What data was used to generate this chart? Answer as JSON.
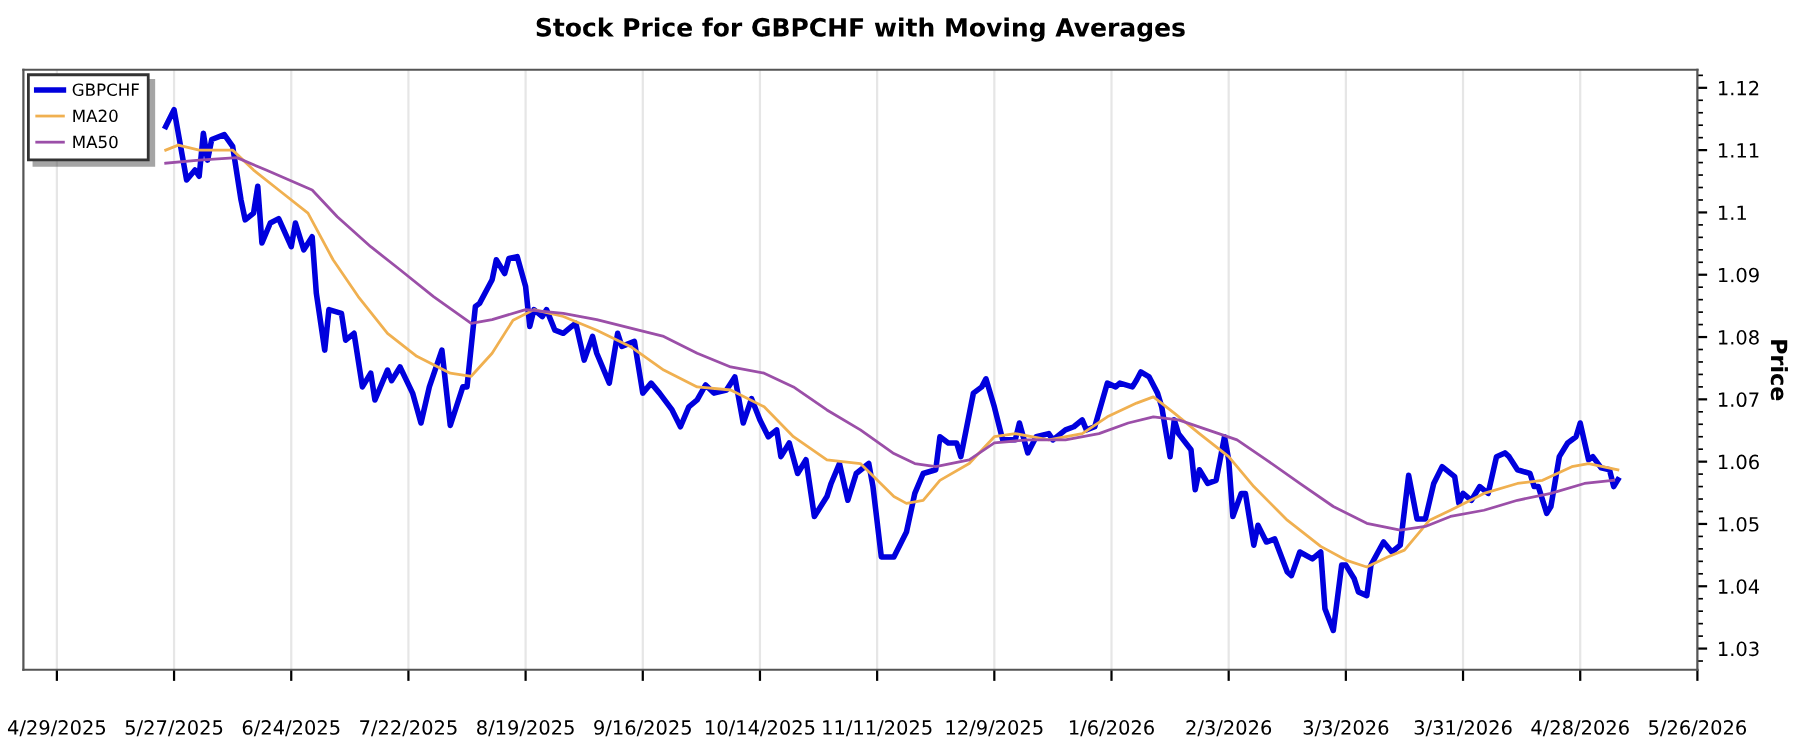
{
  "chart_data": {
    "type": "line",
    "title": "Stock Price for GBPCHF with Moving Averages",
    "ylabel": "Price",
    "xlim": [
      "2025-04-21",
      "2026-05-26"
    ],
    "ylim": [
      1.0266,
      1.1229
    ],
    "xticks": [
      {
        "value": "2025-04-29",
        "label": "4/29/2025"
      },
      {
        "value": "2025-05-27",
        "label": "5/27/2025"
      },
      {
        "value": "2025-06-24",
        "label": "6/24/2025"
      },
      {
        "value": "2025-07-22",
        "label": "7/22/2025"
      },
      {
        "value": "2025-08-19",
        "label": "8/19/2025"
      },
      {
        "value": "2025-09-16",
        "label": "9/16/2025"
      },
      {
        "value": "2025-10-14",
        "label": "10/14/2025"
      },
      {
        "value": "2025-11-11",
        "label": "11/11/2025"
      },
      {
        "value": "2025-12-09",
        "label": "12/9/2025"
      },
      {
        "value": "2026-01-06",
        "label": "1/6/2026"
      },
      {
        "value": "2026-02-03",
        "label": "2/3/2026"
      },
      {
        "value": "2026-03-03",
        "label": "3/3/2026"
      },
      {
        "value": "2026-03-31",
        "label": "3/31/2026"
      },
      {
        "value": "2026-04-28",
        "label": "4/28/2026"
      },
      {
        "value": "2026-05-26",
        "label": "5/26/2026"
      }
    ],
    "yticks": [
      1.03,
      1.04,
      1.05,
      1.06,
      1.07,
      1.08,
      1.09,
      1.1,
      1.11,
      1.12
    ],
    "grid": "x",
    "legend": "top left",
    "marker": "none",
    "line_style": "solid",
    "series": [
      {
        "name": "GBPCHF",
        "color": "#0000dd",
        "x": [
          "2025-05-25",
          "2025-05-27",
          "2025-05-30",
          "2025-06-01",
          "2025-06-02",
          "2025-06-03",
          "2025-06-04",
          "2025-06-05",
          "2025-06-08",
          "2025-06-10",
          "2025-06-12",
          "2025-06-13",
          "2025-06-15",
          "2025-06-16",
          "2025-06-17",
          "2025-06-19",
          "2025-06-21",
          "2025-06-24",
          "2025-06-25",
          "2025-06-27",
          "2025-06-29",
          "2025-06-30",
          "2025-07-02",
          "2025-07-03",
          "2025-07-06",
          "2025-07-07",
          "2025-07-09",
          "2025-07-11",
          "2025-07-13",
          "2025-07-14",
          "2025-07-17",
          "2025-07-18",
          "2025-07-20",
          "2025-07-23",
          "2025-07-25",
          "2025-07-27",
          "2025-07-30",
          "2025-08-01",
          "2025-08-04",
          "2025-08-05",
          "2025-08-07",
          "2025-08-08",
          "2025-08-11",
          "2025-08-12",
          "2025-08-14",
          "2025-08-15",
          "2025-08-17",
          "2025-08-19",
          "2025-08-20",
          "2025-08-21",
          "2025-08-23",
          "2025-08-24",
          "2025-08-26",
          "2025-08-28",
          "2025-08-30",
          "2025-08-31",
          "2025-09-02",
          "2025-09-04",
          "2025-09-05",
          "2025-09-08",
          "2025-09-10",
          "2025-09-11",
          "2025-09-14",
          "2025-09-16",
          "2025-09-18",
          "2025-09-20",
          "2025-09-23",
          "2025-09-25",
          "2025-09-27",
          "2025-09-29",
          "2025-10-01",
          "2025-10-03",
          "2025-10-06",
          "2025-10-08",
          "2025-10-10",
          "2025-10-12",
          "2025-10-14",
          "2025-10-16",
          "2025-10-18",
          "2025-10-19",
          "2025-10-21",
          "2025-10-23",
          "2025-10-25",
          "2025-10-27",
          "2025-10-30",
          "2025-10-31",
          "2025-11-02",
          "2025-11-04",
          "2025-11-06",
          "2025-11-09",
          "2025-11-10",
          "2025-11-12",
          "2025-11-15",
          "2025-11-18",
          "2025-11-20",
          "2025-11-22",
          "2025-11-25",
          "2025-11-26",
          "2025-11-28",
          "2025-11-30",
          "2025-12-01",
          "2025-12-04",
          "2025-12-06",
          "2025-12-07",
          "2025-12-09",
          "2025-12-11",
          "2025-12-14",
          "2025-12-15",
          "2025-12-17",
          "2025-12-19",
          "2025-12-22",
          "2025-12-23",
          "2025-12-26",
          "2025-12-28",
          "2025-12-30",
          "2025-12-31",
          "2026-01-02",
          "2026-01-05",
          "2026-01-07",
          "2026-01-08",
          "2026-01-11",
          "2026-01-12",
          "2026-01-13",
          "2026-01-15",
          "2026-01-17",
          "2026-01-18",
          "2026-01-20",
          "2026-01-21",
          "2026-01-22",
          "2026-01-25",
          "2026-01-26",
          "2026-01-27",
          "2026-01-29",
          "2026-01-31",
          "2026-02-02",
          "2026-02-03",
          "2026-02-04",
          "2026-02-06",
          "2026-02-07",
          "2026-02-09",
          "2026-02-10",
          "2026-02-12",
          "2026-02-14",
          "2026-02-17",
          "2026-02-18",
          "2026-02-20",
          "2026-02-23",
          "2026-02-25",
          "2026-02-26",
          "2026-02-28",
          "2026-03-02",
          "2026-03-03",
          "2026-03-05",
          "2026-03-06",
          "2026-03-08",
          "2026-03-09",
          "2026-03-12",
          "2026-03-14",
          "2026-03-16",
          "2026-03-18",
          "2026-03-20",
          "2026-03-22",
          "2026-03-24",
          "2026-03-26",
          "2026-03-29",
          "2026-03-30",
          "2026-03-31",
          "2026-04-02",
          "2026-04-04",
          "2026-04-06",
          "2026-04-08",
          "2026-04-10",
          "2026-04-11",
          "2026-04-13",
          "2026-04-16",
          "2026-04-17",
          "2026-04-18",
          "2026-04-20",
          "2026-04-21",
          "2026-04-23",
          "2026-04-25",
          "2026-04-27",
          "2026-04-28",
          "2026-04-30",
          "2026-05-01",
          "2026-05-03",
          "2026-05-05",
          "2026-05-06",
          "2026-05-07"
        ],
        "values": [
          1.1138,
          1.1165,
          1.1052,
          1.1068,
          1.1058,
          1.1127,
          1.1084,
          1.1117,
          1.1125,
          1.1106,
          1.102,
          1.0988,
          1.0999,
          1.1042,
          1.0951,
          1.0983,
          1.099,
          1.0945,
          1.0983,
          1.094,
          1.0961,
          1.087,
          1.0779,
          1.0844,
          1.0838,
          1.0795,
          1.0806,
          1.072,
          1.0742,
          1.0699,
          1.0747,
          1.073,
          1.0752,
          1.071,
          1.0662,
          1.072,
          1.0779,
          1.0658,
          1.072,
          1.072,
          1.0849,
          1.0854,
          1.0892,
          1.0924,
          1.0902,
          1.0926,
          1.0929,
          1.0881,
          1.0817,
          1.0844,
          1.0833,
          1.0844,
          1.0811,
          1.0806,
          1.0817,
          1.0822,
          1.0763,
          1.0801,
          1.0774,
          1.0726,
          1.0806,
          1.0785,
          1.0793,
          1.071,
          1.0726,
          1.071,
          1.0683,
          1.0656,
          1.0688,
          1.0699,
          1.0723,
          1.071,
          1.0715,
          1.0736,
          1.0662,
          1.0701,
          1.0667,
          1.064,
          1.0651,
          1.0608,
          1.063,
          1.0581,
          1.0603,
          1.0512,
          1.0544,
          1.0565,
          1.0597,
          1.0538,
          1.0581,
          1.0597,
          1.056,
          1.0447,
          1.0447,
          1.0487,
          1.0549,
          1.0581,
          1.0587,
          1.064,
          1.063,
          1.063,
          1.0608,
          1.071,
          1.072,
          1.0733,
          1.0688,
          1.0635,
          1.0635,
          1.0662,
          1.0614,
          1.064,
          1.0645,
          1.0635,
          1.0651,
          1.0656,
          1.0667,
          1.0651,
          1.0656,
          1.0726,
          1.072,
          1.0726,
          1.072,
          1.0731,
          1.0744,
          1.0736,
          1.071,
          1.0688,
          1.0608,
          1.0667,
          1.0645,
          1.0619,
          1.0555,
          1.0587,
          1.0565,
          1.057,
          1.064,
          1.0603,
          1.0512,
          1.0549,
          1.0549,
          1.0466,
          1.0498,
          1.0471,
          1.0476,
          1.0423,
          1.0417,
          1.0455,
          1.0444,
          1.0455,
          1.0364,
          1.0329,
          1.0434,
          1.0434,
          1.0412,
          1.0391,
          1.0385,
          1.0434,
          1.0471,
          1.0455,
          1.0466,
          1.0578,
          1.0508,
          1.0508,
          1.0565,
          1.0592,
          1.0576,
          1.0533,
          1.0549,
          1.0538,
          1.056,
          1.0549,
          1.0608,
          1.0614,
          1.0608,
          1.0587,
          1.0581,
          1.056,
          1.056,
          1.0517,
          1.0528,
          1.0608,
          1.063,
          1.064,
          1.0662,
          1.0603,
          1.0608,
          1.059,
          1.0587,
          1.056,
          1.0571
        ]
      },
      {
        "name": "MA20",
        "color": "#f0b050",
        "x": [
          "2025-05-25",
          "2025-05-28",
          "2025-06-02",
          "2025-06-10",
          "2025-06-15",
          "2025-06-21",
          "2025-06-28",
          "2025-07-04",
          "2025-07-10",
          "2025-07-17",
          "2025-07-24",
          "2025-08-01",
          "2025-08-06",
          "2025-08-11",
          "2025-08-16",
          "2025-08-21",
          "2025-08-28",
          "2025-09-05",
          "2025-09-13",
          "2025-09-21",
          "2025-09-29",
          "2025-10-07",
          "2025-10-15",
          "2025-10-22",
          "2025-10-30",
          "2025-11-07",
          "2025-11-15",
          "2025-11-18",
          "2025-11-22",
          "2025-11-26",
          "2025-12-03",
          "2025-12-09",
          "2025-12-14",
          "2025-12-22",
          "2025-12-30",
          "2026-01-05",
          "2026-01-12",
          "2026-01-16",
          "2026-01-21",
          "2026-01-27",
          "2026-02-03",
          "2026-02-09",
          "2026-02-17",
          "2026-02-25",
          "2026-03-03",
          "2026-03-08",
          "2026-03-13",
          "2026-03-17",
          "2026-03-23",
          "2026-03-28",
          "2026-04-05",
          "2026-04-13",
          "2026-04-19",
          "2026-04-26",
          "2026-04-30",
          "2026-05-07"
        ],
        "values": [
          1.11,
          1.1108,
          1.11,
          1.11,
          1.1068,
          1.1036,
          1.0999,
          1.0924,
          1.0865,
          1.0806,
          1.0769,
          1.0742,
          1.0737,
          1.0774,
          1.0827,
          1.0844,
          1.0833,
          1.0811,
          1.0785,
          1.0747,
          1.072,
          1.0715,
          1.0688,
          1.064,
          1.0603,
          1.0597,
          1.0544,
          1.0533,
          1.0538,
          1.057,
          1.0597,
          1.064,
          1.0645,
          1.0635,
          1.0645,
          1.0672,
          1.0694,
          1.0704,
          1.0678,
          1.0645,
          1.0608,
          1.056,
          1.0506,
          1.0464,
          1.0442,
          1.0431,
          1.0447,
          1.0458,
          1.0506,
          1.0522,
          1.0549,
          1.0565,
          1.057,
          1.0592,
          1.0597,
          1.0587
        ]
      },
      {
        "name": "MA50",
        "color": "#9b4fa8",
        "x": [
          "2025-05-25",
          "2025-06-02",
          "2025-06-11",
          "2025-06-18",
          "2025-06-29",
          "2025-07-05",
          "2025-07-13",
          "2025-07-20",
          "2025-07-28",
          "2025-08-06",
          "2025-08-11",
          "2025-08-19",
          "2025-08-28",
          "2025-09-05",
          "2025-09-15",
          "2025-09-21",
          "2025-09-29",
          "2025-10-07",
          "2025-10-15",
          "2025-10-22",
          "2025-10-30",
          "2025-11-07",
          "2025-11-15",
          "2025-11-20",
          "2025-11-25",
          "2025-12-03",
          "2025-12-09",
          "2025-12-17",
          "2025-12-26",
          "2026-01-03",
          "2026-01-10",
          "2026-01-16",
          "2026-01-22",
          "2026-01-29",
          "2026-02-05",
          "2026-02-12",
          "2026-02-20",
          "2026-02-28",
          "2026-03-08",
          "2026-03-16",
          "2026-03-22",
          "2026-03-28",
          "2026-04-05",
          "2026-04-13",
          "2026-04-21",
          "2026-04-29",
          "2026-05-06"
        ],
        "values": [
          1.1079,
          1.1084,
          1.1088,
          1.1068,
          1.1036,
          1.0993,
          1.0945,
          1.0908,
          1.0865,
          1.0822,
          1.0828,
          1.0844,
          1.0838,
          1.0828,
          1.0811,
          1.0801,
          1.0774,
          1.0752,
          1.0742,
          1.072,
          1.0683,
          1.0651,
          1.0613,
          1.0597,
          1.0592,
          1.0603,
          1.063,
          1.0635,
          1.0635,
          1.0645,
          1.0662,
          1.0672,
          1.0667,
          1.0651,
          1.0635,
          1.0603,
          1.0565,
          1.0528,
          1.0501,
          1.049,
          1.0496,
          1.0512,
          1.0522,
          1.0538,
          1.0549,
          1.0565,
          1.057
        ]
      }
    ]
  }
}
